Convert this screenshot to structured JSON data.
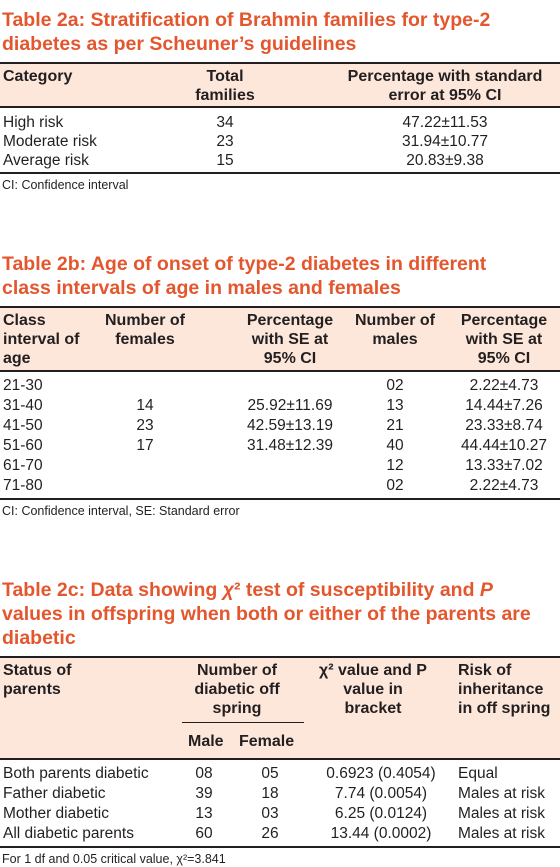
{
  "t2a": {
    "title": "Table 2a: Stratification of Brahmin families for type-2 diabetes as per Scheuner’s guidelines",
    "headers": [
      "Category",
      "Total families",
      "Percentage with standard error at 95% CI"
    ],
    "rows": [
      [
        "High risk",
        "34",
        "47.22±11.53"
      ],
      [
        "Moderate risk",
        "23",
        "31.94±10.77"
      ],
      [
        "Average risk",
        "15",
        "20.83±9.38"
      ]
    ],
    "footnote": "CI: Confidence interval"
  },
  "t2b": {
    "title": "Table 2b: Age of onset of type-2 diabetes in different class intervals of age in males and females",
    "headers": [
      "Class interval of age",
      "Number of females",
      "Percentage with SE at 95% CI",
      "Number of males",
      "Percentage with SE at 95% CI"
    ],
    "rows": [
      [
        "21-30",
        "",
        "",
        "02",
        "2.22±4.73"
      ],
      [
        "31-40",
        "14",
        "25.92±11.69",
        "13",
        "14.44±7.26"
      ],
      [
        "41-50",
        "23",
        "42.59±13.19",
        "21",
        "23.33±8.74"
      ],
      [
        "51-60",
        "17",
        "31.48±12.39",
        "40",
        "44.44±10.27"
      ],
      [
        "61-70",
        "",
        "",
        "12",
        "13.33±7.02"
      ],
      [
        "71-80",
        "",
        "",
        "02",
        "2.22±4.73"
      ]
    ],
    "footnote": "CI: Confidence interval, SE: Standard error"
  },
  "t2c": {
    "title_a": "Table 2c: Data showing ",
    "title_chi": "χ",
    "title_b": "² test of susceptibility and ",
    "title_p": "P",
    "title_c": " values in offspring when both or either of the parents are diabetic",
    "headers": {
      "status": "Status of parents",
      "number": "Number of diabetic off spring",
      "male": "Male",
      "female": "Female",
      "chi": "χ² value and P value in bracket",
      "risk": "Risk of inheritance in off spring"
    },
    "rows": [
      [
        "Both parents diabetic",
        "08",
        "05",
        "0.6923 (0.4054)",
        "Equal"
      ],
      [
        "Father diabetic",
        "39",
        "18",
        "7.74 (0.0054)",
        "Males at risk"
      ],
      [
        "Mother diabetic",
        "13",
        "03",
        "6.25 (0.0124)",
        "Males at risk"
      ],
      [
        "All diabetic parents",
        "60",
        "26",
        "13.44 (0.0002)",
        "Males at risk"
      ]
    ],
    "footnote": "For 1 df and 0.05 critical value, χ²=3.841"
  }
}
